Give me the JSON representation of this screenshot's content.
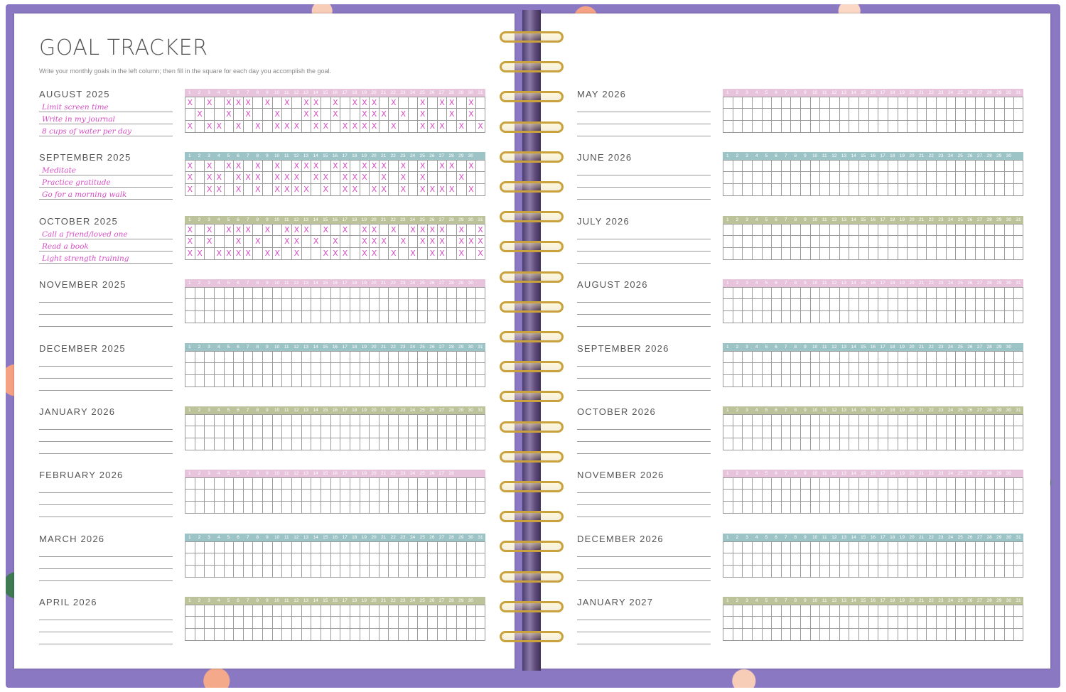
{
  "colors": {
    "pink": "#e7c3dc",
    "teal": "#9cc3c6",
    "olive": "#bcc39a",
    "ink": "#d64fc4",
    "cover": "#8b78c2"
  },
  "page": {
    "title": "GOAL TRACKER",
    "instruction": "Write your monthly goals in the left column; then fill in the square for each day you accomplish the goal."
  },
  "months": [
    {
      "label": "AUGUST 2025",
      "days": 31,
      "color": "pink",
      "goals": [
        "Limit screen time",
        "Write in my journal",
        "8 cups of water per day"
      ],
      "marks": [
        [
          1,
          3,
          5,
          6,
          7,
          9,
          11,
          13,
          14,
          16,
          18,
          19,
          20,
          22,
          25,
          27,
          28,
          30
        ],
        [
          2,
          5,
          7,
          10,
          13,
          14,
          16,
          19,
          20,
          21,
          23,
          25,
          28,
          30
        ],
        [
          1,
          3,
          4,
          6,
          8,
          10,
          11,
          12,
          14,
          15,
          17,
          18,
          19,
          20,
          22,
          25,
          26,
          27,
          29,
          31
        ]
      ]
    },
    {
      "label": "SEPTEMBER 2025",
      "days": 30,
      "color": "teal",
      "goals": [
        "Meditate",
        "Practice gratitude",
        "Go for a morning walk"
      ],
      "marks": [
        [
          1,
          3,
          5,
          6,
          8,
          10,
          12,
          13,
          14,
          16,
          17,
          19,
          20,
          21,
          23,
          25,
          27,
          28,
          30
        ],
        [
          1,
          3,
          4,
          6,
          7,
          8,
          10,
          11,
          12,
          14,
          15,
          17,
          18,
          19,
          21,
          23,
          25,
          29
        ],
        [
          1,
          3,
          4,
          6,
          8,
          10,
          11,
          12,
          13,
          15,
          17,
          18,
          20,
          21,
          23,
          25,
          26,
          27,
          28,
          30
        ]
      ]
    },
    {
      "label": "OCTOBER 2025",
      "days": 31,
      "color": "olive",
      "goals": [
        "Call a friend/loved one",
        "Read a book",
        "Light strength training"
      ],
      "marks": [
        [
          1,
          3,
          5,
          6,
          7,
          9,
          11,
          12,
          13,
          15,
          17,
          19,
          20,
          22,
          24,
          25,
          26,
          27,
          29,
          31
        ],
        [
          1,
          3,
          6,
          8,
          11,
          12,
          14,
          16,
          19,
          20,
          21,
          23,
          25,
          26,
          27,
          29,
          30,
          31
        ],
        [
          1,
          2,
          4,
          5,
          6,
          7,
          9,
          10,
          12,
          15,
          16,
          17,
          19,
          20,
          22,
          24,
          26,
          27,
          29,
          31
        ]
      ]
    },
    {
      "label": "NOVEMBER 2025",
      "days": 30,
      "color": "pink",
      "goals": [
        "",
        "",
        ""
      ],
      "marks": [
        [],
        [],
        []
      ]
    },
    {
      "label": "DECEMBER 2025",
      "days": 31,
      "color": "teal",
      "goals": [
        "",
        "",
        ""
      ],
      "marks": [
        [],
        [],
        []
      ]
    },
    {
      "label": "JANUARY 2026",
      "days": 31,
      "color": "olive",
      "goals": [
        "",
        "",
        ""
      ],
      "marks": [
        [],
        [],
        []
      ]
    },
    {
      "label": "FEBRUARY 2026",
      "days": 28,
      "color": "pink",
      "goals": [
        "",
        "",
        ""
      ],
      "marks": [
        [],
        [],
        []
      ]
    },
    {
      "label": "MARCH 2026",
      "days": 31,
      "color": "teal",
      "goals": [
        "",
        "",
        ""
      ],
      "marks": [
        [],
        [],
        []
      ]
    },
    {
      "label": "APRIL 2026",
      "days": 30,
      "color": "olive",
      "goals": [
        "",
        "",
        ""
      ],
      "marks": [
        [],
        [],
        []
      ]
    },
    {
      "label": "MAY 2026",
      "days": 31,
      "color": "pink",
      "goals": [
        "",
        "",
        ""
      ],
      "marks": [
        [],
        [],
        []
      ]
    },
    {
      "label": "JUNE 2026",
      "days": 30,
      "color": "teal",
      "goals": [
        "",
        "",
        ""
      ],
      "marks": [
        [],
        [],
        []
      ]
    },
    {
      "label": "JULY 2026",
      "days": 31,
      "color": "olive",
      "goals": [
        "",
        "",
        ""
      ],
      "marks": [
        [],
        [],
        []
      ]
    },
    {
      "label": "AUGUST 2026",
      "days": 31,
      "color": "pink",
      "goals": [
        "",
        "",
        ""
      ],
      "marks": [
        [],
        [],
        []
      ]
    },
    {
      "label": "SEPTEMBER 2026",
      "days": 30,
      "color": "teal",
      "goals": [
        "",
        "",
        ""
      ],
      "marks": [
        [],
        [],
        []
      ]
    },
    {
      "label": "OCTOBER 2026",
      "days": 31,
      "color": "olive",
      "goals": [
        "",
        "",
        ""
      ],
      "marks": [
        [],
        [],
        []
      ]
    },
    {
      "label": "NOVEMBER 2026",
      "days": 30,
      "color": "pink",
      "goals": [
        "",
        "",
        ""
      ],
      "marks": [
        [],
        [],
        []
      ]
    },
    {
      "label": "DECEMBER 2026",
      "days": 31,
      "color": "teal",
      "goals": [
        "",
        "",
        ""
      ],
      "marks": [
        [],
        [],
        []
      ]
    },
    {
      "label": "JANUARY 2027",
      "days": 31,
      "color": "olive",
      "goals": [
        "",
        "",
        ""
      ],
      "marks": [
        [],
        [],
        []
      ]
    }
  ],
  "mark_glyph": "X"
}
